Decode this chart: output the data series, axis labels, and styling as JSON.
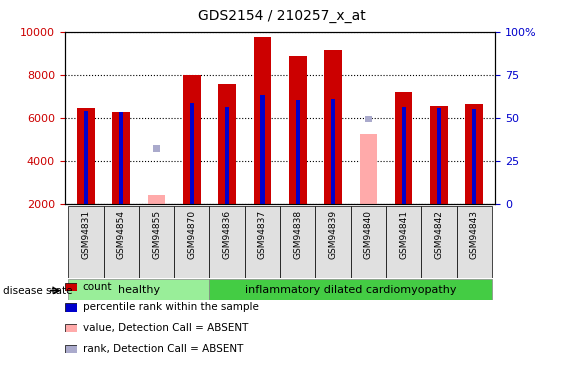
{
  "title": "GDS2154 / 210257_x_at",
  "samples": [
    "GSM94831",
    "GSM94854",
    "GSM94855",
    "GSM94870",
    "GSM94836",
    "GSM94837",
    "GSM94838",
    "GSM94839",
    "GSM94840",
    "GSM94841",
    "GSM94842",
    "GSM94843"
  ],
  "count_values": [
    6450,
    6300,
    null,
    8000,
    7580,
    9750,
    8900,
    9150,
    null,
    7200,
    6550,
    6650
  ],
  "rank_values": [
    6350,
    6290,
    null,
    6720,
    6530,
    7050,
    6830,
    6870,
    null,
    6530,
    6480,
    6430
  ],
  "absent_value_values": [
    null,
    null,
    2450,
    null,
    null,
    null,
    null,
    null,
    5250,
    null,
    null,
    null
  ],
  "absent_rank_values": [
    null,
    null,
    4600,
    null,
    null,
    null,
    null,
    null,
    5950,
    null,
    null,
    null
  ],
  "healthy_count": 4,
  "idcm_count": 8,
  "bar_width": 0.5,
  "rank_bar_width": 0.12,
  "count_color": "#cc0000",
  "rank_color": "#0000cc",
  "absent_value_color": "#ffaaaa",
  "absent_rank_color": "#aaaacc",
  "healthy_color": "#99ee99",
  "idcm_color": "#44cc44",
  "ylim_left": [
    2000,
    10000
  ],
  "ylim_right": [
    0,
    100
  ],
  "right_ticks": [
    0,
    25,
    50,
    75,
    100
  ],
  "right_tick_labels": [
    "0",
    "25",
    "50",
    "75",
    "100%"
  ],
  "left_ticks": [
    2000,
    4000,
    6000,
    8000,
    10000
  ],
  "legend_items": [
    {
      "label": "count",
      "color": "#cc0000"
    },
    {
      "label": "percentile rank within the sample",
      "color": "#0000cc"
    },
    {
      "label": "value, Detection Call = ABSENT",
      "color": "#ffaaaa"
    },
    {
      "label": "rank, Detection Call = ABSENT",
      "color": "#aaaacc"
    }
  ]
}
